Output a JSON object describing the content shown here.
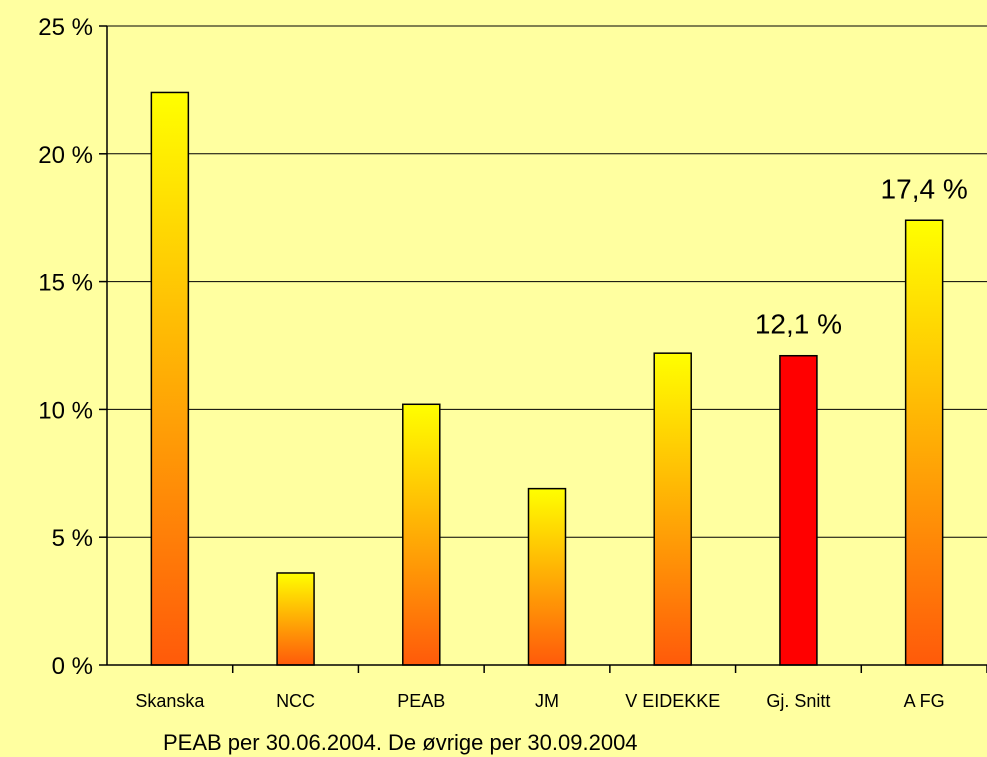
{
  "chart_data": {
    "type": "bar",
    "categories": [
      "Skanska",
      "NCC",
      "PEAB",
      "JM",
      "V EIDEKKE",
      "Gj. Snitt",
      "A FG"
    ],
    "values": [
      22.4,
      3.6,
      10.2,
      6.9,
      12.2,
      12.1,
      17.4
    ],
    "ylim": [
      0,
      25
    ],
    "yticks": [
      0,
      5,
      10,
      15,
      20,
      25
    ],
    "ytick_labels": [
      "0 %",
      "5 %",
      "10 %",
      "15 %",
      "20 %",
      "25 %"
    ],
    "grid": true,
    "legend": "none",
    "data_labels": [
      {
        "category": "Gj. Snitt",
        "text": "12,1 %"
      },
      {
        "category": "A FG",
        "text": "17,4 %"
      }
    ],
    "highlight_category": "Gj. Snitt",
    "colors": {
      "background": "#ffffa0",
      "bar_top": "#ffff00",
      "bar_bottom": "#ff5a0a",
      "highlight": "#ff0000"
    }
  },
  "footnote": "PEAB per 30.06.2004. De øvrige per 30.09.2004"
}
